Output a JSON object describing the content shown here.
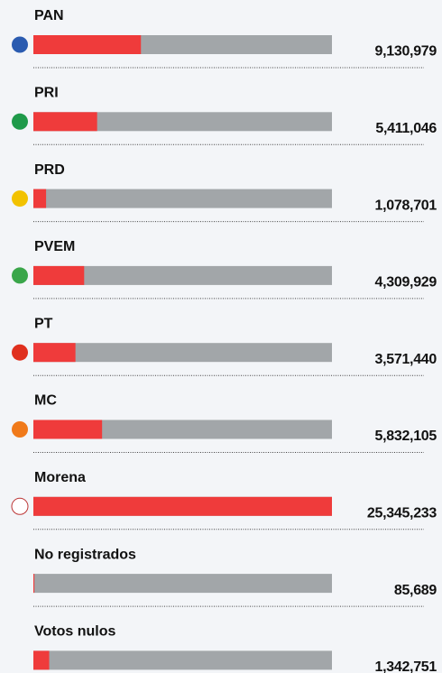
{
  "chart_data": {
    "type": "bar",
    "categories": [
      "PAN",
      "PRI",
      "PRD",
      "PVEM",
      "PT",
      "MC",
      "Morena",
      "No registrados",
      "Votos nulos"
    ],
    "values": [
      9130979,
      5411046,
      1078701,
      4309929,
      3571440,
      5832105,
      25345233,
      85689,
      1342751
    ],
    "value_labels": [
      "9,130,979",
      "5,411,046",
      "1,078,701",
      "4,309,929",
      "3,571,440",
      "5,832,105",
      "25,345,233",
      "85,689",
      "1,342,751"
    ],
    "color": "#ef3b3b",
    "track_color": "#a2a6a9",
    "xlim": [
      0,
      25345233
    ]
  }
}
